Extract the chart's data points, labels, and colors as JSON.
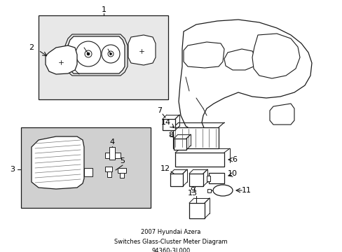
{
  "bg_color": "#ffffff",
  "line_color": "#1a1a1a",
  "light_gray": "#e8e8e8",
  "gray_bg": "#d0d0d0",
  "title_lines": [
    "2007 Hyundai Azera",
    "Switches Glass-Cluster Meter Diagram",
    "94360-3L000"
  ]
}
